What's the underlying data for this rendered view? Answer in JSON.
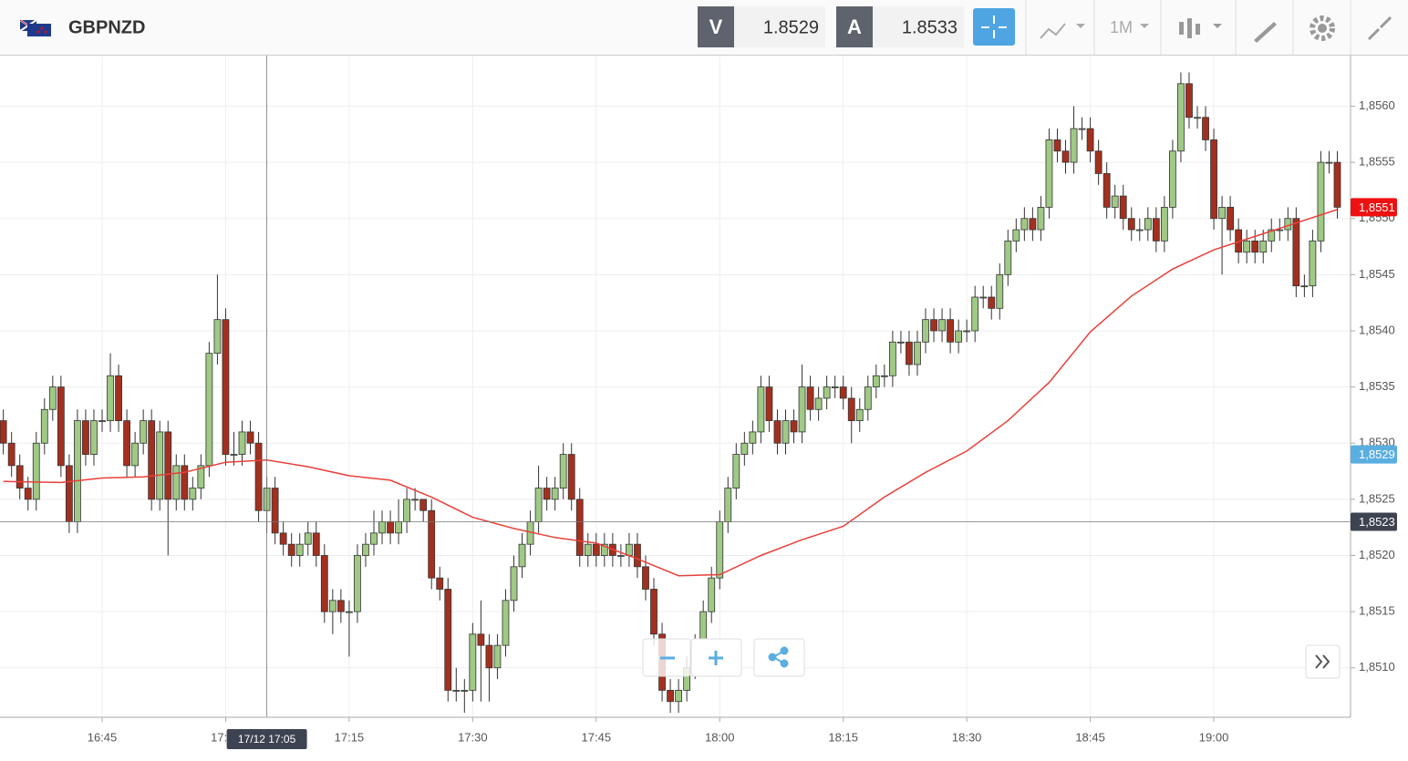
{
  "header": {
    "symbol": "GBPNZD",
    "bid_label": "V",
    "bid": 1.8529,
    "ask_label": "A",
    "ask": 1.8533,
    "timeframe": "1M"
  },
  "chart_data": {
    "type": "candlestick",
    "x": [
      "16:33",
      "16:34",
      "16:35",
      "16:36",
      "16:37",
      "16:38",
      "16:39",
      "16:40",
      "16:41",
      "16:42",
      "16:43",
      "16:44",
      "16:45",
      "16:46",
      "16:47",
      "16:48",
      "16:49",
      "16:50",
      "16:51",
      "16:52",
      "16:53",
      "16:54",
      "16:55",
      "16:56",
      "16:57",
      "16:58",
      "16:59",
      "17:00",
      "17:01",
      "17:02",
      "17:03",
      "17:04",
      "17:05",
      "17:06",
      "17:07",
      "17:08",
      "17:09",
      "17:10",
      "17:11",
      "17:12",
      "17:13",
      "17:14",
      "17:15",
      "17:16",
      "17:17",
      "17:18",
      "17:19",
      "17:20",
      "17:21",
      "17:22",
      "17:23",
      "17:24",
      "17:25",
      "17:26",
      "17:27",
      "17:28",
      "17:29",
      "17:30",
      "17:31",
      "17:32",
      "17:33",
      "17:34",
      "17:35",
      "17:36",
      "17:37",
      "17:38",
      "17:39",
      "17:40",
      "17:41",
      "17:42",
      "17:43",
      "17:44",
      "17:45",
      "17:46",
      "17:47",
      "17:48",
      "17:49",
      "17:50",
      "17:51",
      "17:52",
      "17:53",
      "17:54",
      "17:55",
      "17:56",
      "17:57",
      "17:58",
      "17:59",
      "18:00",
      "18:01",
      "18:02",
      "18:03",
      "18:04",
      "18:05",
      "18:06",
      "18:07",
      "18:08",
      "18:09",
      "18:10",
      "18:11",
      "18:12",
      "18:13",
      "18:14",
      "18:15",
      "18:16",
      "18:17",
      "18:18",
      "18:19",
      "18:20",
      "18:21",
      "18:22",
      "18:23",
      "18:24",
      "18:25",
      "18:26",
      "18:27",
      "18:28",
      "18:29",
      "18:30",
      "18:31",
      "18:32",
      "18:33",
      "18:34",
      "18:35",
      "18:36",
      "18:37",
      "18:38",
      "18:39",
      "18:40",
      "18:41",
      "18:42",
      "18:43",
      "18:44",
      "18:45",
      "18:46",
      "18:47",
      "18:48",
      "18:49",
      "18:50",
      "18:51",
      "18:52",
      "18:53",
      "18:54",
      "18:55",
      "18:56",
      "18:57",
      "18:58",
      "18:59",
      "19:00",
      "19:01",
      "19:02",
      "19:03",
      "19:04",
      "19:05",
      "19:06",
      "19:07",
      "19:08",
      "19:09",
      "19:10",
      "19:11",
      "19:12",
      "19:13",
      "19:14",
      "19:15"
    ],
    "open": [
      1.8532,
      1.853,
      1.8528,
      1.8526,
      1.8525,
      1.853,
      1.8533,
      1.8535,
      1.8528,
      1.8523,
      1.8532,
      1.8529,
      1.8532,
      1.8532,
      1.8536,
      1.8532,
      1.8528,
      1.853,
      1.8532,
      1.8525,
      1.8531,
      1.8525,
      1.8528,
      1.8525,
      1.8526,
      1.8528,
      1.8538,
      1.8541,
      1.8529,
      1.8529,
      1.8531,
      1.853,
      1.8524,
      1.8526,
      1.8522,
      1.8521,
      1.852,
      1.8521,
      1.8522,
      1.852,
      1.8515,
      1.8516,
      1.8515,
      1.8515,
      1.852,
      1.8521,
      1.8522,
      1.8523,
      1.8522,
      1.8523,
      1.8525,
      1.8525,
      1.8524,
      1.8518,
      1.8517,
      1.8508,
      1.8508,
      1.8508,
      1.8513,
      1.8512,
      1.851,
      1.8512,
      1.8516,
      1.8519,
      1.8521,
      1.8523,
      1.8526,
      1.8525,
      1.8526,
      1.8529,
      1.8525,
      1.852,
      1.8521,
      1.852,
      1.8521,
      1.852,
      1.852,
      1.8521,
      1.8519,
      1.8517,
      1.8513,
      1.8508,
      1.8507,
      1.8508,
      1.851,
      1.8512,
      1.8515,
      1.8518,
      1.8523,
      1.8526,
      1.8529,
      1.853,
      1.8531,
      1.8535,
      1.8532,
      1.853,
      1.8532,
      1.8531,
      1.8535,
      1.8533,
      1.8534,
      1.8535,
      1.8535,
      1.8534,
      1.8532,
      1.8533,
      1.8535,
      1.8536,
      1.8536,
      1.8539,
      1.8539,
      1.8537,
      1.8539,
      1.8541,
      1.854,
      1.8541,
      1.8539,
      1.854,
      1.854,
      1.8543,
      1.8543,
      1.8542,
      1.8545,
      1.8548,
      1.8549,
      1.855,
      1.8549,
      1.8551,
      1.8557,
      1.8556,
      1.8555,
      1.8558,
      1.8558,
      1.8556,
      1.8554,
      1.8551,
      1.8552,
      1.855,
      1.8549,
      1.8549,
      1.855,
      1.8548,
      1.8551,
      1.8556,
      1.8562,
      1.8559,
      1.8559,
      1.8557,
      1.855,
      1.8551,
      1.8549,
      1.8547,
      1.8548,
      1.8547,
      1.8548,
      1.8549,
      1.8549,
      1.855,
      1.8544,
      1.8544,
      1.8548,
      1.8555,
      1.8555
    ],
    "high": [
      1.8533,
      1.8531,
      1.8529,
      1.8527,
      1.8531,
      1.8534,
      1.8536,
      1.8536,
      1.8529,
      1.8533,
      1.8533,
      1.8533,
      1.8533,
      1.8538,
      1.8537,
      1.8533,
      1.8531,
      1.8533,
      1.8533,
      1.8532,
      1.8532,
      1.8529,
      1.8529,
      1.8527,
      1.8529,
      1.8539,
      1.8545,
      1.8542,
      1.8531,
      1.8532,
      1.8532,
      1.8531,
      1.8527,
      1.8527,
      1.8523,
      1.8522,
      1.8522,
      1.8523,
      1.8523,
      1.8521,
      1.8517,
      1.8517,
      1.8516,
      1.8521,
      1.8522,
      1.8524,
      1.8524,
      1.8524,
      1.8525,
      1.8526,
      1.8526,
      1.8525,
      1.8525,
      1.8519,
      1.8518,
      1.851,
      1.8509,
      1.8514,
      1.8516,
      1.8513,
      1.8513,
      1.8517,
      1.852,
      1.8522,
      1.8524,
      1.8528,
      1.8527,
      1.8527,
      1.853,
      1.853,
      1.8526,
      1.8522,
      1.8522,
      1.8522,
      1.8522,
      1.8521,
      1.8522,
      1.8522,
      1.852,
      1.8518,
      1.8514,
      1.8509,
      1.8509,
      1.8511,
      1.8513,
      1.8516,
      1.8519,
      1.8524,
      1.8527,
      1.853,
      1.8531,
      1.8532,
      1.8536,
      1.8536,
      1.8533,
      1.8533,
      1.8533,
      1.8537,
      1.8536,
      1.8535,
      1.8536,
      1.8536,
      1.8536,
      1.8535,
      1.8534,
      1.8536,
      1.8537,
      1.8537,
      1.854,
      1.854,
      1.854,
      1.854,
      1.8542,
      1.8542,
      1.8542,
      1.8542,
      1.8541,
      1.8541,
      1.8544,
      1.8544,
      1.8544,
      1.8546,
      1.8549,
      1.855,
      1.8551,
      1.8551,
      1.8552,
      1.8558,
      1.8558,
      1.8557,
      1.856,
      1.8559,
      1.8559,
      1.8557,
      1.8555,
      1.8553,
      1.8553,
      1.8551,
      1.855,
      1.8551,
      1.8551,
      1.8552,
      1.8557,
      1.8563,
      1.8563,
      1.856,
      1.856,
      1.8558,
      1.8552,
      1.8552,
      1.855,
      1.8549,
      1.8549,
      1.8549,
      1.855,
      1.855,
      1.8551,
      1.8551,
      1.8545,
      1.8549,
      1.8556,
      1.8556,
      1.8556
    ],
    "low": [
      1.8529,
      1.8527,
      1.8525,
      1.8524,
      1.8524,
      1.8529,
      1.8532,
      1.8527,
      1.8522,
      1.8522,
      1.8528,
      1.8528,
      1.8531,
      1.8531,
      1.8531,
      1.8527,
      1.8527,
      1.8529,
      1.8524,
      1.8524,
      1.852,
      1.8524,
      1.8524,
      1.8524,
      1.8525,
      1.8527,
      1.8537,
      1.8528,
      1.8528,
      1.8528,
      1.8529,
      1.8523,
      1.8522,
      1.8521,
      1.852,
      1.8519,
      1.8519,
      1.852,
      1.8519,
      1.8514,
      1.8513,
      1.8514,
      1.8511,
      1.8514,
      1.8519,
      1.852,
      1.8521,
      1.8521,
      1.8521,
      1.8522,
      1.8524,
      1.8523,
      1.8517,
      1.8516,
      1.8507,
      1.8507,
      1.8506,
      1.8507,
      1.8507,
      1.8507,
      1.8509,
      1.8511,
      1.8515,
      1.8518,
      1.852,
      1.8522,
      1.8524,
      1.8524,
      1.8525,
      1.8524,
      1.8519,
      1.8519,
      1.8519,
      1.8519,
      1.8519,
      1.8519,
      1.8519,
      1.8518,
      1.8516,
      1.8512,
      1.8507,
      1.8506,
      1.8506,
      1.8507,
      1.8509,
      1.8511,
      1.8514,
      1.8517,
      1.8522,
      1.8525,
      1.8528,
      1.8529,
      1.853,
      1.8531,
      1.8529,
      1.8529,
      1.853,
      1.853,
      1.8532,
      1.8532,
      1.8533,
      1.8534,
      1.8533,
      1.853,
      1.8531,
      1.8532,
      1.8534,
      1.8535,
      1.8535,
      1.8538,
      1.8536,
      1.8536,
      1.8538,
      1.8539,
      1.8539,
      1.8538,
      1.8538,
      1.8539,
      1.8539,
      1.8542,
      1.8541,
      1.8541,
      1.8544,
      1.8547,
      1.8548,
      1.8548,
      1.8548,
      1.855,
      1.8555,
      1.8554,
      1.8554,
      1.8557,
      1.8555,
      1.8553,
      1.855,
      1.855,
      1.8549,
      1.8548,
      1.8548,
      1.8548,
      1.8547,
      1.8547,
      1.855,
      1.8555,
      1.8558,
      1.8558,
      1.8556,
      1.8549,
      1.8545,
      1.8548,
      1.8546,
      1.8546,
      1.8546,
      1.8546,
      1.8547,
      1.8548,
      1.8548,
      1.8543,
      1.8543,
      1.8543,
      1.8547,
      1.8554,
      1.855
    ],
    "close": [
      1.853,
      1.8528,
      1.8526,
      1.8525,
      1.853,
      1.8533,
      1.8535,
      1.8528,
      1.8523,
      1.8532,
      1.8529,
      1.8532,
      1.8532,
      1.8536,
      1.8532,
      1.8528,
      1.853,
      1.8532,
      1.8525,
      1.8531,
      1.8525,
      1.8528,
      1.8525,
      1.8526,
      1.8528,
      1.8538,
      1.8541,
      1.8529,
      1.8529,
      1.8531,
      1.853,
      1.8524,
      1.8526,
      1.8522,
      1.8521,
      1.852,
      1.8521,
      1.8522,
      1.852,
      1.8515,
      1.8516,
      1.8515,
      1.8515,
      1.852,
      1.8521,
      1.8522,
      1.8523,
      1.8522,
      1.8523,
      1.8525,
      1.8525,
      1.8524,
      1.8518,
      1.8517,
      1.8508,
      1.8508,
      1.8508,
      1.8513,
      1.8512,
      1.851,
      1.8512,
      1.8516,
      1.8519,
      1.8521,
      1.8523,
      1.8526,
      1.8525,
      1.8526,
      1.8529,
      1.8525,
      1.852,
      1.8521,
      1.852,
      1.8521,
      1.852,
      1.852,
      1.8521,
      1.8519,
      1.8517,
      1.8513,
      1.8508,
      1.8507,
      1.8508,
      1.851,
      1.8512,
      1.8515,
      1.8518,
      1.8523,
      1.8526,
      1.8529,
      1.853,
      1.8531,
      1.8535,
      1.8532,
      1.853,
      1.8532,
      1.8531,
      1.8535,
      1.8533,
      1.8534,
      1.8535,
      1.8535,
      1.8534,
      1.8532,
      1.8533,
      1.8535,
      1.8536,
      1.8536,
      1.8539,
      1.8539,
      1.8537,
      1.8539,
      1.8541,
      1.854,
      1.8541,
      1.8539,
      1.854,
      1.854,
      1.8543,
      1.8543,
      1.8542,
      1.8545,
      1.8548,
      1.8549,
      1.855,
      1.8549,
      1.8551,
      1.8557,
      1.8556,
      1.8555,
      1.8558,
      1.8558,
      1.8556,
      1.8554,
      1.8551,
      1.8552,
      1.855,
      1.8549,
      1.8549,
      1.855,
      1.8548,
      1.8551,
      1.8556,
      1.8562,
      1.8559,
      1.8559,
      1.8557,
      1.855,
      1.8551,
      1.8549,
      1.8547,
      1.8548,
      1.8547,
      1.8548,
      1.8549,
      1.8549,
      1.855,
      1.8544,
      1.8544,
      1.8548,
      1.8555,
      1.8555,
      1.8551
    ],
    "up_color": "#9fc985",
    "down_color": "#a3301f",
    "moving_average": {
      "color": "#e8403a",
      "x": [
        "16:33",
        "16:40",
        "16:45",
        "16:50",
        "16:55",
        "17:00",
        "17:05",
        "17:10",
        "17:15",
        "17:20",
        "17:25",
        "17:30",
        "17:35",
        "17:40",
        "17:45",
        "17:50",
        "17:55",
        "18:00",
        "18:05",
        "18:10",
        "18:15",
        "18:20",
        "18:25",
        "18:30",
        "18:35",
        "18:40",
        "18:45",
        "18:50",
        "18:55",
        "19:00",
        "19:05",
        "19:10",
        "19:15"
      ],
      "values": [
        1.85266,
        1.85265,
        1.85269,
        1.8527,
        1.85274,
        1.85283,
        1.85285,
        1.85279,
        1.85271,
        1.85267,
        1.85252,
        1.85234,
        1.85224,
        1.85216,
        1.85211,
        1.85197,
        1.85182,
        1.85183,
        1.852,
        1.85214,
        1.85226,
        1.85252,
        1.85274,
        1.85293,
        1.8532,
        1.85354,
        1.85399,
        1.85431,
        1.85455,
        1.85472,
        1.85484,
        1.85496,
        1.85508
      ]
    },
    "ylim": [
      1.85056,
      1.85645
    ],
    "yticks": [
      {
        "value": 1.851,
        "label": "1,8510"
      },
      {
        "value": 1.8515,
        "label": "1,8515"
      },
      {
        "value": 1.852,
        "label": "1,8520"
      },
      {
        "value": 1.8525,
        "label": "1,8525"
      },
      {
        "value": 1.853,
        "label": "1,8530"
      },
      {
        "value": 1.8535,
        "label": "1,8535"
      },
      {
        "value": 1.854,
        "label": "1,8540"
      },
      {
        "value": 1.8545,
        "label": "1,8545"
      },
      {
        "value": 1.855,
        "label": "1,8550"
      },
      {
        "value": 1.8555,
        "label": "1,8555"
      },
      {
        "value": 1.856,
        "label": "1,8560"
      }
    ],
    "xticks": [
      "16:45",
      "17:00",
      "17:15",
      "17:30",
      "17:45",
      "18:00",
      "18:15",
      "18:30",
      "18:45",
      "19:00"
    ],
    "grid": true,
    "crosshair": {
      "x_label": "17/12 17:05",
      "y": {
        "value": 1.8523,
        "label": "1,8523"
      }
    },
    "price_markers": [
      {
        "value": 1.8551,
        "label": "1,8551",
        "color": "#ee1111"
      },
      {
        "value": 1.8529,
        "label": "1,8529",
        "color": "#5aaee0"
      }
    ]
  }
}
